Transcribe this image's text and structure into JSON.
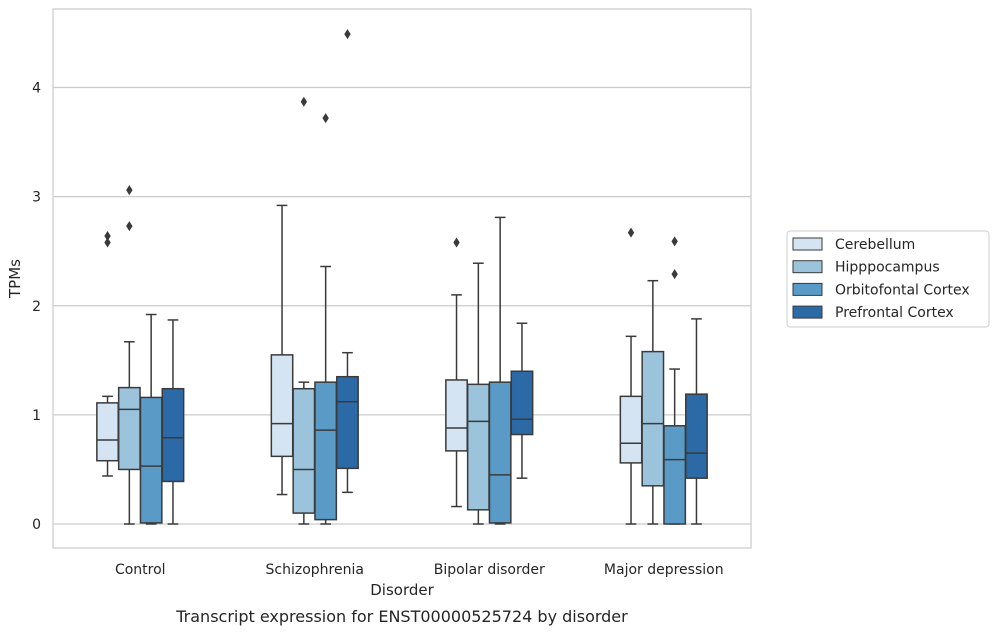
{
  "chart_data": {
    "type": "boxplot",
    "title": "Transcript expression for ENST00000525724 by disorder",
    "xlabel": "Disorder",
    "ylabel": "TPMs",
    "ylim": [
      -0.22,
      4.72
    ],
    "yticks": [
      0,
      1,
      2,
      3,
      4
    ],
    "grid": "horizontal",
    "legend_position": "right",
    "categories": [
      "Control",
      "Schizophrenia",
      "Bipolar disorder",
      "Major depression"
    ],
    "series": [
      {
        "name": "Cerebellum",
        "color": "#d4e4f2",
        "boxes": [
          {
            "whislo": 0.44,
            "q1": 0.58,
            "med": 0.77,
            "q3": 1.11,
            "whishi": 1.17,
            "fliers": [
              2.58,
              2.64
            ]
          },
          {
            "whislo": 0.27,
            "q1": 0.62,
            "med": 0.92,
            "q3": 1.55,
            "whishi": 2.92,
            "fliers": []
          },
          {
            "whislo": 0.16,
            "q1": 0.67,
            "med": 0.88,
            "q3": 1.32,
            "whishi": 2.1,
            "fliers": [
              2.58
            ]
          },
          {
            "whislo": 0.0,
            "q1": 0.56,
            "med": 0.74,
            "q3": 1.17,
            "whishi": 1.72,
            "fliers": [
              2.67
            ]
          }
        ]
      },
      {
        "name": "Hipppocampus",
        "color": "#9bc3dc",
        "boxes": [
          {
            "whislo": 0.0,
            "q1": 0.5,
            "med": 1.05,
            "q3": 1.25,
            "whishi": 1.67,
            "fliers": [
              2.73,
              3.06
            ]
          },
          {
            "whislo": 0.0,
            "q1": 0.1,
            "med": 0.5,
            "q3": 1.24,
            "whishi": 1.3,
            "fliers": [
              3.87
            ]
          },
          {
            "whislo": 0.0,
            "q1": 0.13,
            "med": 0.94,
            "q3": 1.28,
            "whishi": 2.39,
            "fliers": []
          },
          {
            "whislo": 0.0,
            "q1": 0.35,
            "med": 0.92,
            "q3": 1.58,
            "whishi": 2.23,
            "fliers": []
          }
        ]
      },
      {
        "name": "Orbitofontal Cortex",
        "color": "#5a9ac6",
        "boxes": [
          {
            "whislo": 0.0,
            "q1": 0.01,
            "med": 0.53,
            "q3": 1.16,
            "whishi": 1.92,
            "fliers": []
          },
          {
            "whislo": 0.0,
            "q1": 0.04,
            "med": 0.86,
            "q3": 1.3,
            "whishi": 2.36,
            "fliers": [
              3.72
            ]
          },
          {
            "whislo": 0.0,
            "q1": 0.01,
            "med": 0.45,
            "q3": 1.3,
            "whishi": 2.81,
            "fliers": []
          },
          {
            "whislo": 0.0,
            "q1": 0.0,
            "med": 0.59,
            "q3": 0.9,
            "whishi": 1.42,
            "fliers": [
              2.29,
              2.59
            ]
          }
        ]
      },
      {
        "name": "Prefrontal Cortex",
        "color": "#2c6aa7",
        "boxes": [
          {
            "whislo": 0.0,
            "q1": 0.39,
            "med": 0.79,
            "q3": 1.24,
            "whishi": 1.87,
            "fliers": []
          },
          {
            "whislo": 0.29,
            "q1": 0.51,
            "med": 1.12,
            "q3": 1.35,
            "whishi": 1.57,
            "fliers": [
              4.49
            ]
          },
          {
            "whislo": 0.42,
            "q1": 0.82,
            "med": 0.96,
            "q3": 1.4,
            "whishi": 1.84,
            "fliers": []
          },
          {
            "whislo": 0.0,
            "q1": 0.42,
            "med": 0.65,
            "q3": 1.19,
            "whishi": 1.88,
            "fliers": []
          }
        ]
      }
    ]
  }
}
